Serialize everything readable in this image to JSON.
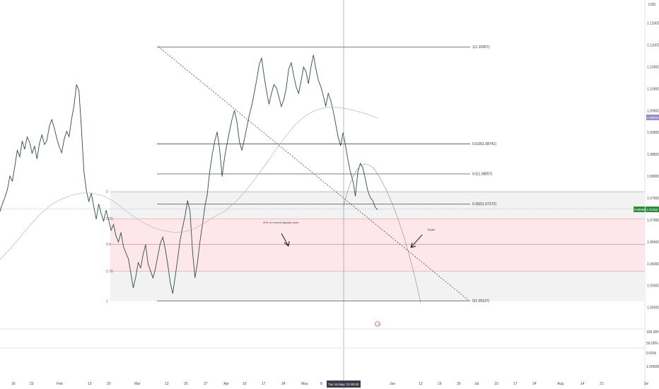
{
  "header": {
    "currency": "USD"
  },
  "chart_data": {
    "type": "line",
    "title": "",
    "price_axis": {
      "ticks": [
        "1.11500",
        "1.11000",
        "1.10500",
        "1.10000",
        "1.09500",
        "1.09000",
        "1.08500",
        "1.08000",
        "1.07500",
        "1.07000",
        "1.06500",
        "1.06000",
        "1.05500",
        "1.05000"
      ],
      "range": [
        1.047,
        1.118
      ]
    },
    "time_axis": {
      "ticks": [
        "16",
        "23",
        "Feb",
        "13",
        "20",
        "Mar",
        "13",
        "20",
        "27",
        "Apr",
        "10",
        "17",
        "24",
        "May",
        "8",
        "Jun",
        "12",
        "19",
        "26",
        "Jul",
        "10",
        "17",
        "24",
        "Aug",
        "14",
        "21",
        "Se"
      ]
    },
    "crosshair_label": "Tue 16 May '23  00:00",
    "badges": {
      "ma_value": "1.09042",
      "last_price_left": "0.90658",
      "last_price_right": "1.07252"
    },
    "fib_levels": [
      {
        "ratio": 1,
        "price": 1.10957,
        "label": "1(1.10957)"
      },
      {
        "ratio": 0.618,
        "price": 1.08741,
        "label": "0.618(1.08741)"
      },
      {
        "ratio": 0.5,
        "price": 1.08057,
        "label": "0.5(1.08057)"
      },
      {
        "ratio": 0.382,
        "price": 1.07372,
        "label": "0.382(1.07372)"
      },
      {
        "ratio": 0,
        "price": 1.05157,
        "label": "0(1.05157)"
      }
    ],
    "zone": {
      "top_price": 1.0765,
      "bottom_price": 1.0515,
      "pink_top": 1.0703,
      "pink_bottom": 1.0583,
      "mid_line": 1.0645,
      "labels": [
        "0",
        "0.25",
        "0.5",
        "0.75",
        "1"
      ]
    },
    "annotations": {
      "liquidity_text": "50% of current liquidity zone",
      "target_text": "Target"
    },
    "lower_pane_ticks": [
      "100.00%",
      "50.00%",
      "0.00%",
      "1.00000"
    ],
    "price_series": [
      1.072,
      1.0738,
      1.0752,
      1.077,
      1.0801,
      1.0789,
      1.0823,
      1.086,
      1.0845,
      1.0881,
      1.0862,
      1.089,
      1.0878,
      1.0853,
      1.0869,
      1.084,
      1.0876,
      1.0895,
      1.0873,
      1.0882,
      1.0915,
      1.093,
      1.0911,
      1.0887,
      1.0868,
      1.0854,
      1.0885,
      1.0903,
      1.0891,
      1.0931,
      1.0962,
      1.101,
      1.0996,
      1.091,
      1.0812,
      1.0768,
      1.0743,
      1.0762,
      1.0731,
      1.0702,
      1.0737,
      1.0715,
      1.0698,
      1.0723,
      1.0701,
      1.0677,
      1.069,
      1.0664,
      1.065,
      1.0672,
      1.064,
      1.0625,
      1.0612,
      1.058,
      1.0545,
      1.057,
      1.0603,
      1.0591,
      1.0622,
      1.0644,
      1.06,
      1.0584,
      1.0568,
      1.059,
      1.062,
      1.0648,
      1.0661,
      1.0633,
      1.0598,
      1.0557,
      1.0532,
      1.0571,
      1.0612,
      1.0655,
      1.0684,
      1.071,
      1.0745,
      1.072,
      1.063,
      1.0568,
      1.0602,
      1.065,
      1.0688,
      1.073,
      1.076,
      1.0812,
      1.085,
      1.088,
      1.0902,
      1.0862,
      1.08,
      1.0843,
      1.0875,
      1.0904,
      1.093,
      1.0951,
      1.0925,
      1.088,
      1.086,
      1.0884,
      1.0912,
      1.094,
      1.0962,
      1.099,
      1.1021,
      1.1055,
      1.1071,
      1.103,
      1.0995,
      1.0965,
      1.099,
      1.101,
      1.1003,
      1.0982,
      1.096,
      1.0975,
      1.1002,
      1.1046,
      1.106,
      1.1031,
      1.1005,
      1.099,
      1.1018,
      1.105,
      1.104,
      1.1012,
      1.105,
      1.1078,
      1.1046,
      1.102,
      1.1005,
      1.0985,
      1.096,
      1.099,
      1.0974,
      1.095,
      1.0921,
      1.089,
      1.087,
      1.09,
      1.0871,
      1.0838,
      1.081,
      1.079,
      1.0755,
      1.081,
      1.083,
      1.082,
      1.0795,
      1.0768,
      1.0752,
      1.0745,
      1.073,
      1.0724
    ],
    "ma_series": [
      1.061,
      1.0635,
      1.0662,
      1.069,
      1.0715,
      1.0735,
      1.0748,
      1.0757,
      1.0762,
      1.0762,
      1.0757,
      1.0745,
      1.0728,
      1.071,
      1.0695,
      1.0683,
      1.0676,
      1.0672,
      1.0673,
      1.068,
      1.0693,
      1.0708,
      1.072,
      1.074,
      1.0765,
      1.0795,
      1.0826,
      1.086,
      1.0892,
      1.092,
      1.094,
      1.0952,
      1.0958,
      1.0958,
      1.0955,
      1.0949,
      1.0942,
      1.0933
    ]
  }
}
